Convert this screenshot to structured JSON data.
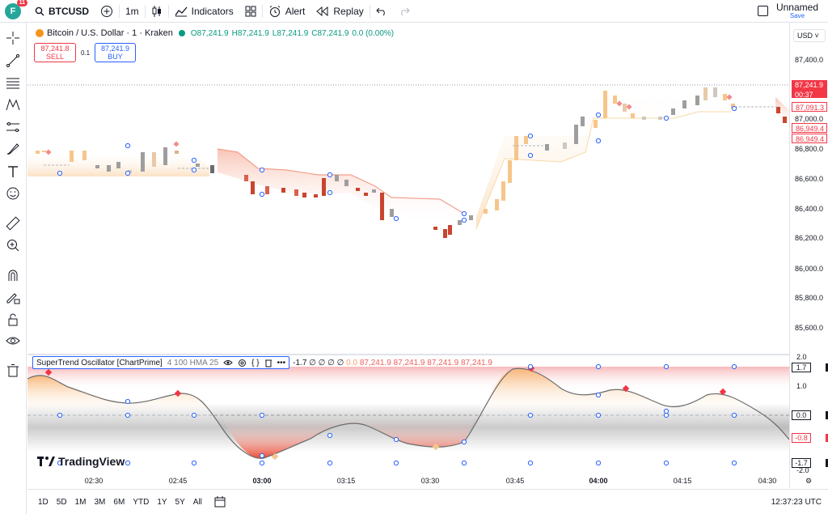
{
  "topbar": {
    "avatar_letter": "F",
    "notif_count": "11",
    "symbol": "BTCUSD",
    "interval": "1m",
    "indicators_label": "Indicators",
    "alert_label": "Alert",
    "replay_label": "Replay",
    "layout_name": "Unnamed",
    "save_label": "Save"
  },
  "legend": {
    "title": "Bitcoin / U.S. Dollar · 1 · Kraken",
    "open": "O87,241.9",
    "high": "H87,241.9",
    "low": "L87,241.9",
    "close": "C87,241.9",
    "change": "0.0 (0.00%)"
  },
  "trade": {
    "sell_price": "87,241.8",
    "sell_label": "SELL",
    "spread": "0.1",
    "buy_price": "87,241.9",
    "buy_label": "BUY"
  },
  "price_axis": {
    "currency": "USD",
    "ticks": [
      "87,400.0",
      "87,000.0",
      "86,800.0",
      "86,600.0",
      "86,400.0",
      "86,200.0",
      "86,000.0",
      "85,800.0",
      "85,600.0"
    ],
    "last_price": "87,241.9",
    "countdown": "00:37",
    "label_a": "87,091.3",
    "label_b": "86,949.4",
    "label_c": "86,949.4"
  },
  "indicator": {
    "name": "SuperTrend Oscillator [ChartPrime]",
    "params": "4 100 HMA 25",
    "value_main": "-1.7",
    "value_nulls": "∅ ∅ ∅ ∅",
    "value_zero": "0.0",
    "values": [
      "87,241.9",
      "87,241.9",
      "87,241.9",
      "87,241.9"
    ],
    "axis_ticks": [
      "2.0",
      "1.7",
      "1.0",
      "0.0",
      "-0.8",
      "-1.7",
      "-2.0"
    ]
  },
  "time_axis": [
    "02:30",
    "02:45",
    "03:00",
    "03:15",
    "03:30",
    "03:45",
    "04:00",
    "04:15",
    "04:30"
  ],
  "bottombar": {
    "ranges": [
      "1D",
      "5D",
      "1M",
      "3M",
      "6M",
      "YTD",
      "1Y",
      "5Y",
      "All"
    ],
    "clock": "12:37:23 UTC"
  },
  "watermark": "TradingView",
  "colors": {
    "up": "#089981",
    "down": "#f23645",
    "supertrend_bear": "#e8624a",
    "supertrend_bull": "#f7c58a",
    "accent": "#2962ff"
  }
}
